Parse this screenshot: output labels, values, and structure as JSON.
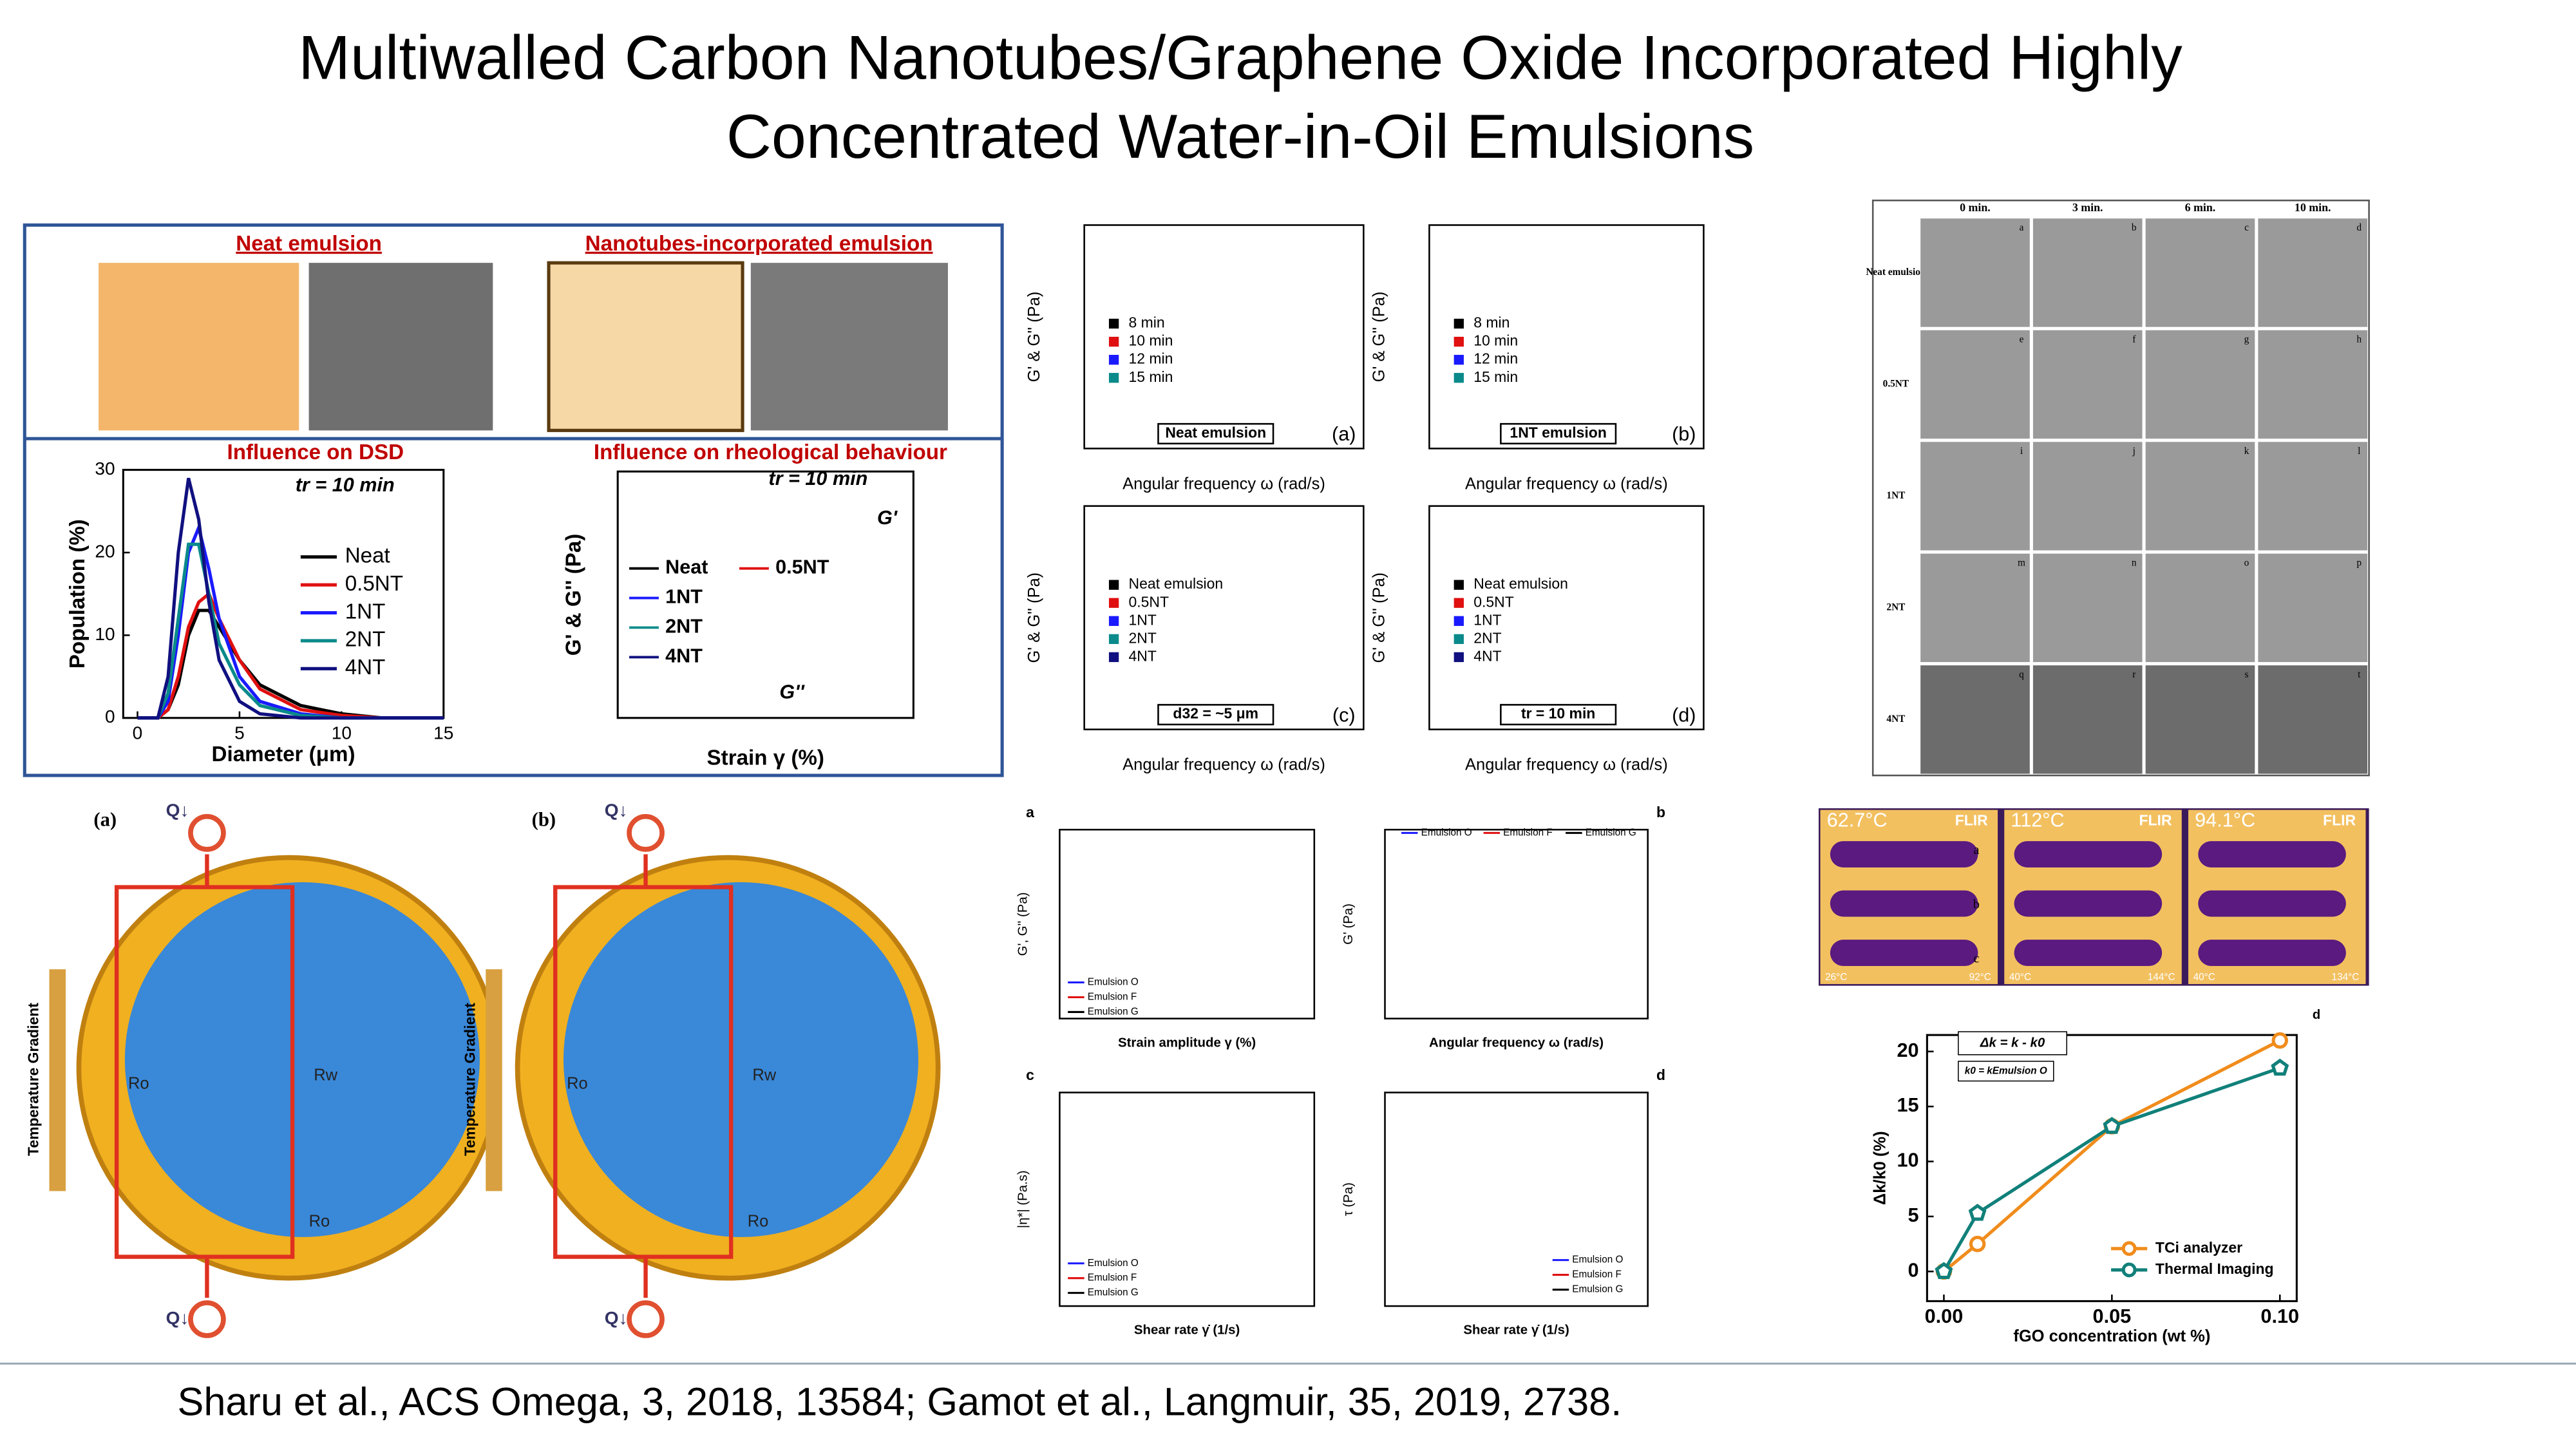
{
  "title_lines": [
    "Multiwalled Carbon Nanotubes/Graphene Oxide Incorporated Highly",
    "Concentrated Water-in-Oil Emulsions"
  ],
  "citation": "Sharu et al., ACS Omega, 3, 2018, 13584; Gamot et al., Langmuir, 35, 2019, 2738.",
  "summary": {
    "neat_heading": "Neat emulsion",
    "nt_heading": "Nanotubes-incorporated emulsion",
    "dsd_heading": "Influence on DSD",
    "rheo_heading": "Influence on rheological behaviour",
    "dsd_chart": {
      "type": "line",
      "annotation": "tr = 10 min",
      "xlabel": "Diameter (μm)",
      "ylabel": "Population (%)",
      "x": [
        0,
        1,
        1.5,
        2,
        2.5,
        3,
        3.5,
        4,
        5,
        6,
        8,
        10,
        12,
        15
      ],
      "xlim": [
        -0.7,
        15
      ],
      "xticks": [
        0,
        5,
        10,
        15
      ],
      "ylim": [
        0,
        30
      ],
      "yticks": [
        0,
        10,
        20,
        30
      ],
      "series": [
        {
          "name": "Neat",
          "color": "#000000",
          "values": [
            0,
            0,
            1,
            4,
            10,
            13,
            13,
            11,
            7,
            4,
            1.5,
            0.5,
            0,
            0
          ]
        },
        {
          "name": "0.5NT",
          "color": "#e01010",
          "values": [
            0,
            0,
            1,
            5,
            11,
            14,
            15,
            12,
            7,
            3.5,
            1,
            0.3,
            0,
            0
          ]
        },
        {
          "name": "1NT",
          "color": "#1a1aff",
          "values": [
            0,
            0,
            2,
            10,
            20,
            23,
            18,
            12,
            5,
            2,
            0.5,
            0,
            0,
            0
          ]
        },
        {
          "name": "2NT",
          "color": "#0a8a8a",
          "values": [
            0,
            0,
            3,
            12,
            21,
            21,
            15,
            9,
            4,
            1.5,
            0.3,
            0,
            0,
            0
          ]
        },
        {
          "name": "4NT",
          "color": "#101080",
          "values": [
            0,
            0,
            5,
            20,
            29,
            24,
            14,
            7,
            2,
            0.5,
            0,
            0,
            0,
            0
          ]
        }
      ]
    },
    "rheo_chart": {
      "annotation": "tr = 10 min",
      "xlabel": "Strain γ (%)",
      "ylabel": "G' & G'' (Pa)",
      "legend": [
        "Neat",
        "0.5NT",
        "1NT",
        "2NT",
        "4NT"
      ],
      "curve_labels": [
        "G'",
        "G''"
      ]
    }
  },
  "frequency_sweeps": {
    "xlabel": "Angular frequency ω (rad/s)",
    "ylabel": "G' & G'' (Pa)",
    "panels": [
      {
        "label": "(a)",
        "caption": "Neat emulsion",
        "legend": [
          "8 min",
          "10 min",
          "12 min",
          "15 min"
        ]
      },
      {
        "label": "(b)",
        "caption": "1NT emulsion",
        "legend": [
          "8 min",
          "10 min",
          "12 min",
          "15 min"
        ]
      },
      {
        "label": "(c)",
        "caption": "d32 = ~5 μm",
        "legend": [
          "Neat emulsion",
          "0.5NT",
          "1NT",
          "2NT",
          "4NT"
        ]
      },
      {
        "label": "(d)",
        "caption": "tr = 10 min",
        "legend": [
          "Neat emulsion",
          "0.5NT",
          "1NT",
          "2NT",
          "4NT"
        ]
      }
    ]
  },
  "micrographs": {
    "columns": [
      "0 min.",
      "3 min.",
      "6 min.",
      "10 min."
    ],
    "rows": [
      "Neat emulsion",
      "0.5NT",
      "1NT",
      "2NT",
      "4NT"
    ],
    "letters": [
      "a",
      "b",
      "c",
      "d",
      "e",
      "f",
      "g",
      "h",
      "i",
      "j",
      "k",
      "l",
      "m",
      "n",
      "o",
      "p",
      "q",
      "r",
      "s",
      "t"
    ]
  },
  "circuits": {
    "panels": [
      "(a)",
      "(b)"
    ],
    "gradient": "Temperature Gradient",
    "heat": "Q↓",
    "resistors": [
      "Ro",
      "Rw",
      "Ro"
    ]
  },
  "shear": {
    "legend": [
      "Emulsion O",
      "Emulsion F",
      "Emulsion G"
    ],
    "panels": [
      {
        "label": "a",
        "xlabel": "Strain amplitude γ (%)",
        "ylabel": "G', G'' (Pa)"
      },
      {
        "label": "b",
        "xlabel": "Angular frequency ω (rad/s)",
        "ylabel": "G' (Pa)"
      },
      {
        "label": "c",
        "xlabel": "Shear rate γ̇ (1/s)",
        "ylabel": "|η*| (Pa.s)"
      },
      {
        "label": "d",
        "xlabel": "Shear rate γ̇ (1/s)",
        "ylabel": "τ (Pa)"
      }
    ]
  },
  "thermal": {
    "brand": "FLIR",
    "temps": [
      "62.7°C",
      "112°C",
      "94.1°C"
    ],
    "scales": [
      [
        "26°C",
        "92°C"
      ],
      [
        "40°C",
        "144°C"
      ],
      [
        "40°C",
        "134°C"
      ]
    ],
    "rows": [
      "a",
      "b",
      "c"
    ]
  },
  "fgo_chart": {
    "type": "line",
    "label": "d",
    "xlabel": "fGO concentration (wt %)",
    "ylabel": "Δk/k0 (%)",
    "annotations": [
      "Δk = k - k0",
      "k0 = kEmulsion O"
    ],
    "x": [
      0,
      0.01,
      0.05,
      0.1
    ],
    "xlim": [
      -0.005,
      0.105
    ],
    "xticks": [
      {
        "value": 0,
        "label": "0.00"
      },
      {
        "value": 0.05,
        "label": "0.05"
      },
      {
        "value": 0.1,
        "label": "0.10"
      }
    ],
    "ylim": [
      -2.7,
      21.5
    ],
    "yticks": [
      0,
      5,
      10,
      15,
      20
    ],
    "series": [
      {
        "name": "TCi analyzer",
        "color": "#f08c1c",
        "marker": "circle",
        "values": [
          0,
          2.5,
          13.2,
          21
        ]
      },
      {
        "name": "Thermal Imaging",
        "color": "#11807a",
        "marker": "pentagon",
        "values": [
          0,
          5.3,
          13.2,
          18.5
        ]
      }
    ]
  }
}
